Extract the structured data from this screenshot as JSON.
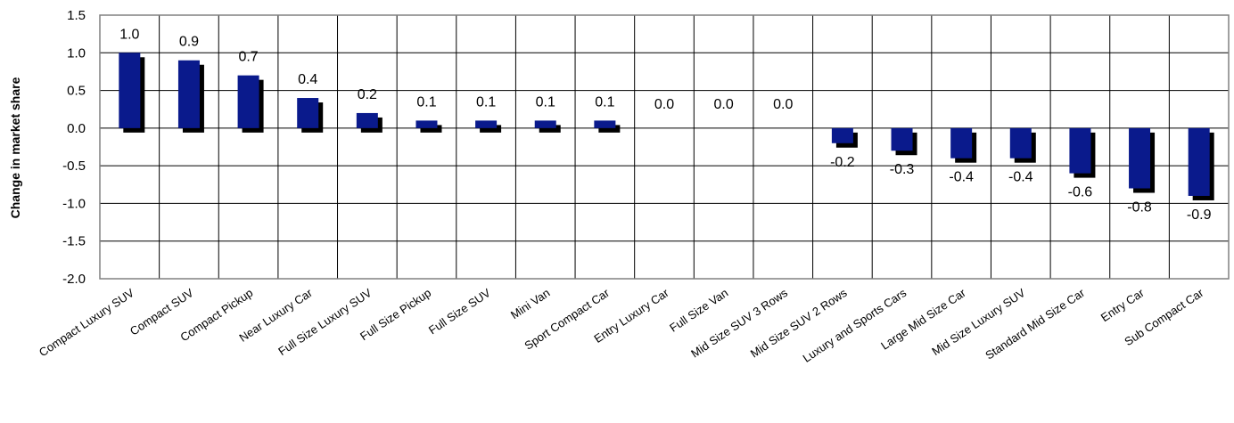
{
  "chart_data": {
    "type": "bar",
    "title": "",
    "xlabel": "",
    "ylabel": "Change in market share",
    "ylim": [
      -2.0,
      1.5
    ],
    "yticks": [
      1.5,
      1.0,
      0.5,
      0.0,
      -0.5,
      -1.0,
      -1.5,
      -2.0
    ],
    "ytick_labels": [
      "1.5",
      "1.0",
      "0.5",
      "0.0",
      "-0.5",
      "-1.0",
      "-1.5",
      "-2.0"
    ],
    "grid": true,
    "legend": "none",
    "categories": [
      "Compact Luxury SUV",
      "Compact SUV",
      "Compact Pickup",
      "Near Luxury Car",
      "Full Size Luxury SUV",
      "Full Size Pickup",
      "Full Size SUV",
      "Mini Van",
      "Sport Compact Car",
      "Entry Luxury Car",
      "Full Size Van",
      "Mid Size SUV 3 Rows",
      "Mid Size SUV 2 Rows",
      "Luxury and Sports Cars",
      "Large Mid Size Car",
      "Mid Size Luxury SUV",
      "Standard Mid Size Car",
      "Entry Car",
      "Sub Compact Car"
    ],
    "values": [
      1.0,
      0.9,
      0.7,
      0.4,
      0.2,
      0.1,
      0.1,
      0.1,
      0.1,
      0.0,
      0.0,
      0.0,
      -0.2,
      -0.3,
      -0.4,
      -0.4,
      -0.6,
      -0.8,
      -0.9
    ],
    "data_labels": [
      "1.0",
      "0.9",
      "0.7",
      "0.4",
      "0.2",
      "0.1",
      "0.1",
      "0.1",
      "0.1",
      "0.0",
      "0.0",
      "0.0",
      "-0.2",
      "-0.3",
      "-0.4",
      "-0.4",
      "-0.6",
      "-0.8",
      "-0.9"
    ],
    "colors": {
      "bar": "#0a1a8c",
      "shadow": "#000000",
      "grid": "#000000",
      "plot_border": "#808080"
    }
  }
}
